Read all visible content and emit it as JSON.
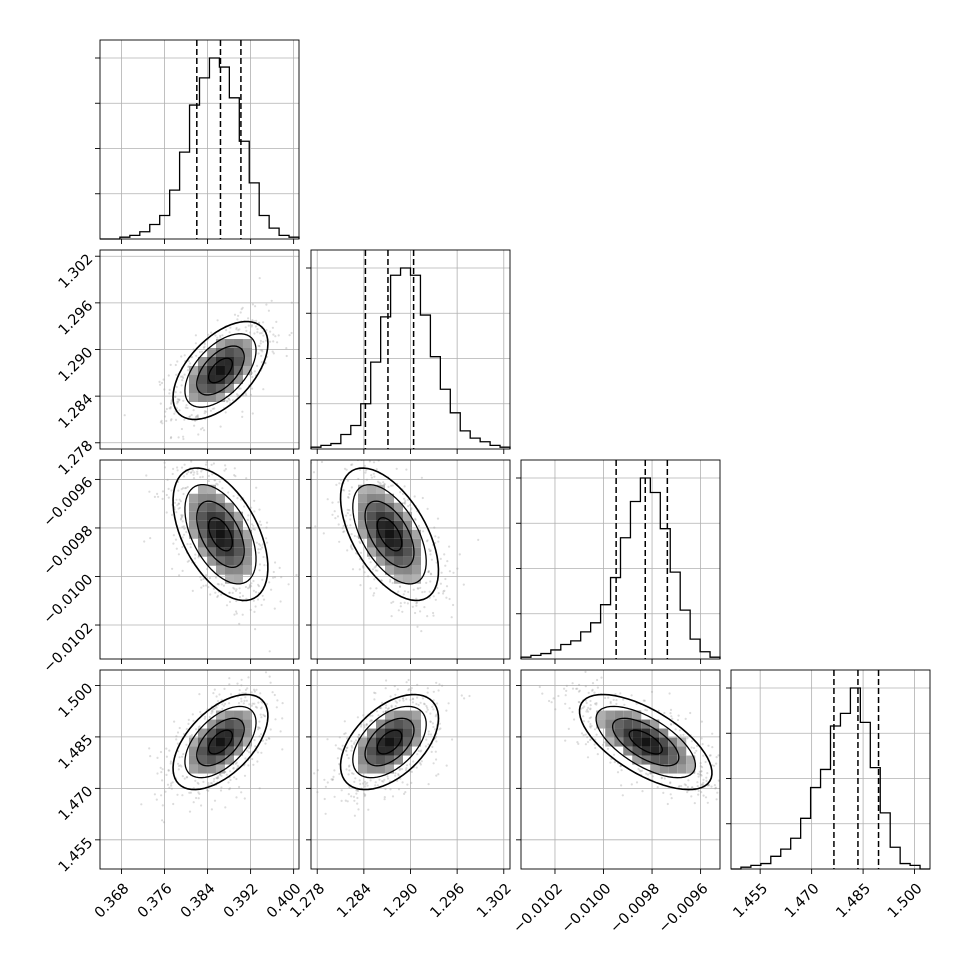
{
  "chart_data": {
    "type": "corner",
    "grid": true,
    "parameters": [
      {
        "range": [
          0.364,
          0.401
        ],
        "ticks": [
          0.368,
          0.376,
          0.384,
          0.392,
          0.4
        ],
        "tick_labels": [
          "0.368",
          "0.376",
          "0.384",
          "0.392",
          "0.400"
        ],
        "mean": 0.3864,
        "std": 0.0042,
        "quantiles": [
          0.382,
          0.3864,
          0.3902
        ],
        "histogram": {
          "edges_start": 0.364,
          "bin_width": 0.00185,
          "counts": [
            0,
            0,
            1,
            2,
            4,
            8,
            13,
            27,
            48,
            74,
            89,
            100,
            95,
            78,
            54,
            31,
            13,
            6,
            2,
            1
          ]
        }
      },
      {
        "range": [
          1.2772,
          1.3028
        ],
        "ticks": [
          1.278,
          1.284,
          1.29,
          1.296,
          1.302
        ],
        "tick_labels": [
          "1.278",
          "1.284",
          "1.290",
          "1.296",
          "1.302"
        ],
        "mean": 1.2873,
        "std": 0.003,
        "quantiles": [
          1.2842,
          1.2871,
          1.2904
        ],
        "histogram": {
          "edges_start": 1.2772,
          "bin_width": 0.00128,
          "counts": [
            1,
            2,
            3,
            8,
            13,
            25,
            48,
            73,
            96,
            100,
            96,
            74,
            51,
            33,
            20,
            10,
            6,
            4,
            2,
            1
          ]
        }
      },
      {
        "range": [
          -0.01034,
          -0.00952
        ],
        "ticks": [
          -0.0102,
          -0.01,
          -0.0098,
          -0.0096
        ],
        "tick_labels": [
          "−0.0102",
          "−0.0100",
          "−0.0098",
          "−0.0096"
        ],
        "mean": -0.009826,
        "std": 0.00013,
        "quantiles": [
          -0.009948,
          -0.009828,
          -0.009737
        ],
        "histogram": {
          "edges_start": -0.01034,
          "bin_width": 4.1e-05,
          "counts": [
            1,
            2,
            3,
            5,
            8,
            10,
            15,
            20,
            30,
            45,
            67,
            87,
            100,
            92,
            72,
            48,
            27,
            11,
            4,
            1
          ]
        }
      },
      {
        "range": [
          1.4465,
          1.5045
        ],
        "ticks": [
          1.455,
          1.47,
          1.485,
          1.5
        ],
        "tick_labels": [
          "1.455",
          "1.470",
          "1.485",
          "1.500"
        ],
        "mean": 1.4835,
        "std": 0.0066,
        "quantiles": [
          1.4765,
          1.4835,
          1.4895
        ],
        "histogram": {
          "edges_start": 1.4465,
          "bin_width": 0.0029,
          "counts": [
            0,
            1,
            2,
            3,
            7,
            11,
            17,
            28,
            45,
            55,
            79,
            86,
            100,
            81,
            56,
            31,
            12,
            3,
            2,
            0
          ]
        }
      }
    ],
    "correlations": {
      "1_0": 0.55,
      "2_0": -0.5,
      "2_1": -0.55,
      "3_0": 0.55,
      "3_1": 0.5,
      "3_2": -0.65
    },
    "contour_levels_sigma": [
      0.5,
      1.0,
      1.5,
      2.0
    ],
    "colors": {
      "line": "#000000",
      "points": "#9a9a9a",
      "grid": "#b0b0b0"
    }
  }
}
